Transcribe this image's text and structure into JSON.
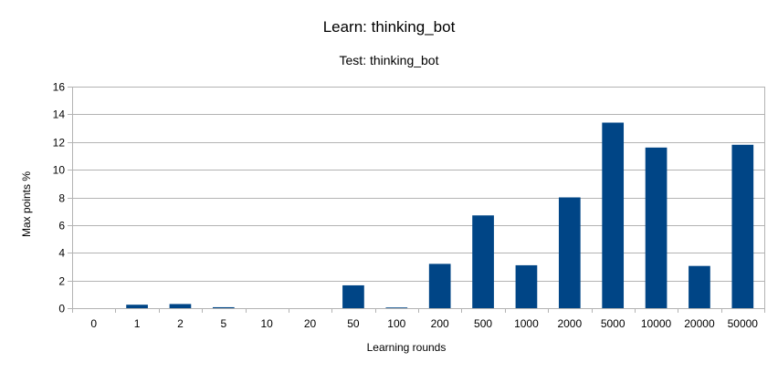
{
  "chart_data": {
    "type": "bar",
    "title": "Learn: thinking_bot",
    "subtitle": "Test: thinking_bot",
    "xlabel": "Learning rounds",
    "ylabel": "Max points %",
    "categories": [
      "0",
      "1",
      "2",
      "5",
      "10",
      "20",
      "50",
      "100",
      "200",
      "500",
      "1000",
      "2000",
      "5000",
      "10000",
      "20000",
      "50000"
    ],
    "values": [
      0,
      0.25,
      0.3,
      0.07,
      0,
      0,
      1.65,
      0.05,
      3.2,
      6.7,
      3.1,
      8.0,
      13.4,
      11.6,
      3.05,
      11.8
    ],
    "ylim": [
      0,
      16
    ],
    "yticks": [
      0,
      2,
      4,
      6,
      8,
      10,
      12,
      14,
      16
    ],
    "grid": true,
    "legend": "none",
    "colors": {
      "bar": "#004586",
      "grid": "#b3b3b3",
      "axis": "#b3b3b3"
    }
  }
}
